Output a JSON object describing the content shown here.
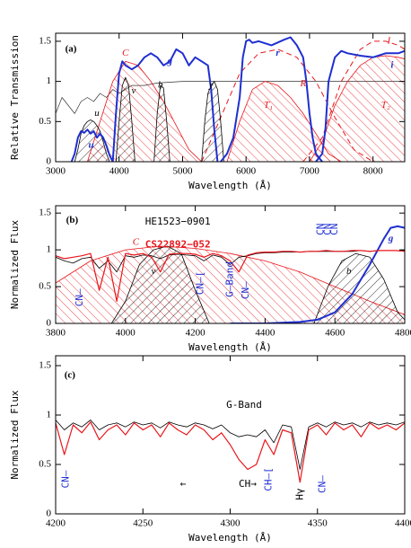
{
  "chart_data": [
    {
      "type": "line",
      "xlabel": "Wavelength (Å)",
      "ylabel": "Relative Transmission",
      "xlim": [
        3000,
        8500
      ],
      "xticks": [
        3000,
        4000,
        5000,
        6000,
        7000,
        8000
      ],
      "ylim": [
        0,
        1.6
      ],
      "yticks": [
        0,
        0.5,
        1,
        1.5
      ],
      "annotations": [
        "(a)"
      ],
      "series": [
        {
          "color": "#333333",
          "width": 0.7,
          "x": [
            3000,
            3100,
            3200,
            3300,
            3400,
            3500,
            3600,
            3700,
            3800,
            3900,
            4000,
            4200,
            4400,
            4600,
            5000,
            5500,
            6000,
            6500,
            7000,
            7500,
            8000,
            8500
          ],
          "values": [
            0.6,
            0.8,
            0.7,
            0.6,
            0.75,
            0.8,
            0.75,
            0.85,
            0.8,
            0.9,
            0.85,
            0.95,
            0.95,
            0.98,
            1,
            1,
            1,
            1,
            1,
            1,
            1,
            1
          ]
        },
        {
          "name": "C",
          "color": "#e8161b",
          "width": 0.8,
          "hatch": true,
          "x": [
            3500,
            3700,
            3900,
            4100,
            4300,
            4500,
            4700,
            4900,
            5100,
            5300
          ],
          "values": [
            0,
            0.5,
            1.0,
            1.25,
            1.2,
            1.0,
            0.75,
            0.45,
            0.15,
            0
          ]
        },
        {
          "name": "T₁",
          "color": "#e8161b",
          "width": 0.8,
          "hatch": true,
          "x": [
            5700,
            5900,
            6100,
            6300,
            6500,
            6700,
            6900,
            7100,
            7300,
            7500
          ],
          "values": [
            0,
            0.5,
            0.9,
            1.0,
            0.95,
            0.8,
            0.6,
            0.35,
            0.1,
            0
          ]
        },
        {
          "name": "T₂",
          "color": "#e8161b",
          "width": 0.8,
          "hatch": true,
          "x": [
            7000,
            7200,
            7400,
            7600,
            7800,
            8000,
            8200,
            8400,
            8500
          ],
          "values": [
            0,
            0.25,
            0.7,
            1.0,
            1.2,
            1.3,
            1.32,
            1.3,
            1.28
          ]
        },
        {
          "name": "R",
          "color": "#e8161b",
          "width": 1,
          "dashed": true,
          "x": [
            5300,
            5600,
            5900,
            6200,
            6500,
            6800,
            7100,
            7400,
            7700,
            8000
          ],
          "values": [
            0,
            0.55,
            1.1,
            1.35,
            1.4,
            1.3,
            1.0,
            0.55,
            0.15,
            0
          ]
        },
        {
          "name": "I",
          "color": "#e8161b",
          "width": 1,
          "dashed": true,
          "x": [
            6900,
            7200,
            7500,
            7800,
            8000,
            8200,
            8400,
            8500
          ],
          "values": [
            0,
            0.3,
            1.0,
            1.4,
            1.5,
            1.5,
            1.45,
            1.4
          ]
        },
        {
          "name": "u",
          "color": "#000000",
          "width": 0.8,
          "hatch": true,
          "x": [
            3300,
            3350,
            3400,
            3450,
            3500,
            3550,
            3600,
            3650,
            3700,
            3750,
            3800,
            3850
          ],
          "values": [
            0,
            0.15,
            0.35,
            0.45,
            0.5,
            0.52,
            0.5,
            0.45,
            0.38,
            0.25,
            0.1,
            0
          ]
        },
        {
          "name": "v",
          "color": "#000000",
          "width": 0.8,
          "hatch": true,
          "x": [
            3950,
            4000,
            4050,
            4100,
            4150,
            4200,
            4250
          ],
          "values": [
            0,
            0.5,
            0.95,
            1.05,
            0.95,
            0.5,
            0
          ]
        },
        {
          "name": "b",
          "color": "#000000",
          "width": 0.8,
          "hatch": true,
          "x": [
            4550,
            4600,
            4650,
            4700,
            4750,
            4800
          ],
          "values": [
            0,
            0.6,
            0.95,
            0.92,
            0.5,
            0
          ]
        },
        {
          "name": "y",
          "color": "#000000",
          "width": 0.8,
          "hatch": true,
          "x": [
            5300,
            5350,
            5400,
            5450,
            5500,
            5550,
            5600,
            5650
          ],
          "values": [
            0,
            0.5,
            0.85,
            0.95,
            1.0,
            0.9,
            0.5,
            0
          ]
        },
        {
          "name": "u",
          "color": "#1f2fd0",
          "width": 2,
          "x": [
            3250,
            3300,
            3350,
            3400,
            3450,
            3500,
            3550,
            3600,
            3650,
            3700,
            3750,
            3800,
            3850,
            3900
          ],
          "values": [
            0,
            0.1,
            0.3,
            0.38,
            0.36,
            0.4,
            0.35,
            0.38,
            0.3,
            0.35,
            0.3,
            0.2,
            0.08,
            0
          ]
        },
        {
          "name": "g",
          "color": "#1f2fd0",
          "width": 2,
          "x": [
            3900,
            3950,
            4000,
            4050,
            4100,
            4200,
            4300,
            4400,
            4500,
            4600,
            4700,
            4800,
            4900,
            5000,
            5100,
            5200,
            5300,
            5400,
            5450,
            5500,
            5550
          ],
          "values": [
            0,
            0.6,
            1.1,
            1.25,
            1.2,
            1.15,
            1.2,
            1.3,
            1.35,
            1.3,
            1.2,
            1.25,
            1.4,
            1.35,
            1.2,
            1.3,
            1.25,
            1.2,
            0.9,
            0.4,
            0
          ]
        },
        {
          "name": "r",
          "color": "#1f2fd0",
          "width": 2,
          "x": [
            5600,
            5700,
            5800,
            5900,
            5950,
            6000,
            6050,
            6100,
            6200,
            6400,
            6600,
            6700,
            6800,
            6900,
            6950,
            7000,
            7050,
            7100,
            7200
          ],
          "values": [
            0,
            0.1,
            0.3,
            0.8,
            1.3,
            1.5,
            1.52,
            1.48,
            1.5,
            1.45,
            1.52,
            1.55,
            1.45,
            1.3,
            1.0,
            0.6,
            0.3,
            0.1,
            0
          ]
        },
        {
          "name": "i",
          "color": "#1f2fd0",
          "width": 2,
          "x": [
            7100,
            7200,
            7250,
            7300,
            7400,
            7500,
            7600,
            7800,
            8000,
            8200,
            8400,
            8500
          ],
          "values": [
            0,
            0.1,
            0.4,
            1.0,
            1.3,
            1.38,
            1.35,
            1.32,
            1.3,
            1.35,
            1.35,
            1.38
          ]
        }
      ]
    },
    {
      "type": "line",
      "xlabel": "Wavelength (Å)",
      "ylabel": "Normalized Flux",
      "xlim": [
        3800,
        4800
      ],
      "xticks": [
        3800,
        4000,
        4200,
        4400,
        4600,
        4800
      ],
      "ylim": [
        0,
        1.6
      ],
      "yticks": [
        0,
        0.5,
        1,
        1.5
      ],
      "annotations": [
        "(b)",
        "CN–",
        "CN–[",
        "G–Band",
        "CN–",
        "CN",
        "CN",
        "CN"
      ],
      "series": [
        {
          "name": "C",
          "color": "#e8161b",
          "width": 0.8,
          "hatch": true,
          "x": [
            3800,
            3900,
            4000,
            4100,
            4200,
            4300,
            4400,
            4500,
            4600,
            4700,
            4800
          ],
          "values": [
            0.55,
            0.85,
            1.0,
            1.05,
            1.02,
            0.95,
            0.85,
            0.7,
            0.5,
            0.3,
            0.12
          ]
        },
        {
          "name": "v",
          "color": "#000000",
          "width": 0.8,
          "hatch": true,
          "x": [
            3960,
            4000,
            4040,
            4080,
            4120,
            4160,
            4200,
            4240
          ],
          "values": [
            0,
            0.3,
            0.8,
            1.0,
            1.05,
            0.95,
            0.45,
            0
          ]
        },
        {
          "name": "b",
          "color": "#000000",
          "width": 0.8,
          "hatch": true,
          "x": [
            4540,
            4580,
            4620,
            4660,
            4700,
            4740,
            4780,
            4800
          ],
          "values": [
            0,
            0.5,
            0.85,
            0.95,
            0.9,
            0.6,
            0.15,
            0.05
          ]
        },
        {
          "name": "g",
          "color": "#1f2fd0",
          "width": 2,
          "x": [
            4300,
            4400,
            4500,
            4550,
            4600,
            4650,
            4700,
            4740,
            4760,
            4780,
            4800
          ],
          "values": [
            0,
            0,
            0.02,
            0.05,
            0.15,
            0.4,
            0.8,
            1.15,
            1.3,
            1.32,
            1.3
          ]
        },
        {
          "name": "HE1523−0901",
          "color": "#000000",
          "width": 0.8,
          "x": [
            3800,
            3825,
            3850,
            3875,
            3900,
            3925,
            3950,
            3975,
            4000,
            4025,
            4050,
            4075,
            4100,
            4125,
            4150,
            4175,
            4200,
            4225,
            4250,
            4275,
            4300,
            4325,
            4350,
            4375,
            4400,
            4425,
            4450,
            4475,
            4500,
            4525,
            4550,
            4575,
            4600,
            4625,
            4650,
            4675,
            4700,
            4725,
            4750,
            4775,
            4800
          ],
          "values": [
            0.9,
            0.85,
            0.82,
            0.88,
            0.9,
            0.75,
            0.85,
            0.7,
            0.92,
            0.9,
            0.93,
            0.92,
            0.88,
            0.93,
            0.94,
            0.93,
            0.92,
            0.85,
            0.93,
            0.9,
            0.8,
            0.9,
            0.92,
            0.95,
            0.96,
            0.96,
            0.97,
            0.97,
            0.97,
            0.98,
            0.98,
            0.98,
            0.98,
            0.98,
            0.98,
            0.99,
            0.98,
            0.99,
            0.99,
            0.99,
            0.99
          ]
        },
        {
          "name": "CS22892−052",
          "color": "#e8161b",
          "width": 1.2,
          "x": [
            3800,
            3825,
            3850,
            3875,
            3900,
            3925,
            3950,
            3975,
            4000,
            4025,
            4050,
            4075,
            4100,
            4125,
            4150,
            4175,
            4200,
            4225,
            4250,
            4275,
            4300,
            4325,
            4350,
            4375,
            4400,
            4425,
            4450,
            4475,
            4500,
            4525,
            4550,
            4575,
            4600,
            4625,
            4650,
            4675,
            4700,
            4725,
            4750,
            4775,
            4800
          ],
          "values": [
            0.92,
            0.88,
            0.9,
            0.92,
            0.95,
            0.45,
            0.9,
            0.3,
            0.95,
            0.93,
            0.95,
            0.9,
            0.7,
            0.94,
            0.95,
            0.95,
            0.94,
            0.9,
            0.95,
            0.92,
            0.85,
            0.7,
            0.93,
            0.96,
            0.97,
            0.97,
            0.98,
            0.98,
            0.97,
            0.98,
            0.98,
            0.99,
            0.98,
            0.98,
            0.99,
            0.99,
            0.98,
            0.99,
            0.99,
            0.99,
            0.98
          ]
        }
      ]
    },
    {
      "type": "line",
      "xlabel": "Wavelength (Å)",
      "ylabel": "Normalized Flux",
      "xlim": [
        4200,
        4400
      ],
      "xticks": [
        4200,
        4250,
        4300,
        4350,
        4400
      ],
      "ylim": [
        0,
        1.6
      ],
      "yticks": [
        0,
        0.5,
        1,
        1.5
      ],
      "annotations": [
        "(c)",
        "G-Band",
        "CN–",
        "←",
        "CH→",
        "CH–[",
        "Hγ",
        "CN–"
      ],
      "series": [
        {
          "color": "#000000",
          "width": 0.8,
          "x": [
            4200,
            4205,
            4210,
            4215,
            4220,
            4225,
            4230,
            4235,
            4240,
            4245,
            4250,
            4255,
            4260,
            4265,
            4270,
            4275,
            4280,
            4285,
            4290,
            4295,
            4300,
            4305,
            4310,
            4315,
            4320,
            4325,
            4330,
            4335,
            4340,
            4345,
            4350,
            4355,
            4360,
            4365,
            4370,
            4375,
            4380,
            4385,
            4390,
            4395,
            4400
          ],
          "values": [
            0.95,
            0.85,
            0.92,
            0.88,
            0.95,
            0.85,
            0.9,
            0.92,
            0.88,
            0.93,
            0.9,
            0.92,
            0.87,
            0.93,
            0.9,
            0.88,
            0.92,
            0.9,
            0.86,
            0.9,
            0.82,
            0.78,
            0.8,
            0.78,
            0.85,
            0.72,
            0.9,
            0.88,
            0.45,
            0.88,
            0.92,
            0.88,
            0.93,
            0.9,
            0.92,
            0.88,
            0.93,
            0.9,
            0.92,
            0.9,
            0.93
          ]
        },
        {
          "color": "#e8161b",
          "width": 1.2,
          "x": [
            4200,
            4205,
            4210,
            4215,
            4220,
            4225,
            4230,
            4235,
            4240,
            4245,
            4250,
            4255,
            4260,
            4265,
            4270,
            4275,
            4280,
            4285,
            4290,
            4295,
            4300,
            4305,
            4310,
            4315,
            4320,
            4325,
            4330,
            4335,
            4340,
            4345,
            4350,
            4355,
            4360,
            4365,
            4370,
            4375,
            4380,
            4385,
            4390,
            4395,
            4400
          ],
          "values": [
            0.92,
            0.6,
            0.9,
            0.82,
            0.93,
            0.75,
            0.85,
            0.9,
            0.8,
            0.92,
            0.85,
            0.9,
            0.78,
            0.92,
            0.85,
            0.8,
            0.9,
            0.85,
            0.75,
            0.82,
            0.7,
            0.55,
            0.45,
            0.5,
            0.75,
            0.6,
            0.85,
            0.82,
            0.32,
            0.85,
            0.9,
            0.8,
            0.92,
            0.85,
            0.9,
            0.78,
            0.92,
            0.86,
            0.9,
            0.85,
            0.92
          ]
        }
      ]
    }
  ]
}
